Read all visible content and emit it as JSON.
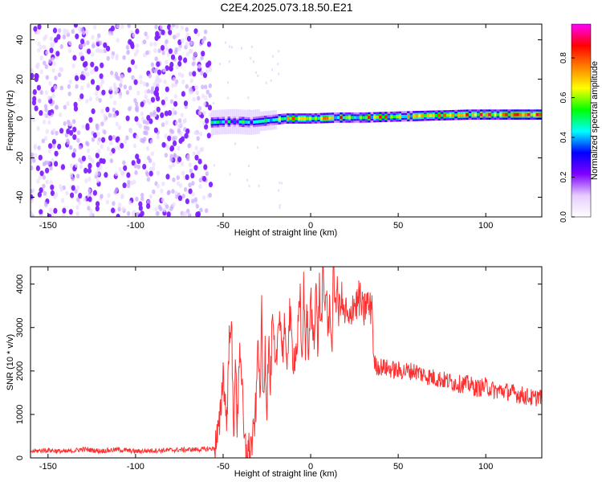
{
  "figure_title": "C2E4.2025.073.18.50.E21",
  "chart_data": [
    {
      "type": "heatmap",
      "xlabel": "Height of straight line (km)",
      "ylabel": "Frequency (Hz)",
      "xlim": [
        -160,
        132
      ],
      "ylim": [
        -50,
        48
      ],
      "xticks": [
        -150,
        -100,
        -50,
        0,
        50,
        100
      ],
      "yticks": [
        -40,
        -20,
        0,
        20,
        40
      ],
      "grid": false,
      "colorbar": {
        "label": "Normalized spectral amplitude",
        "range": [
          0.0,
          0.97
        ],
        "ticks": [
          0.0,
          0.2,
          0.4,
          0.6,
          0.8
        ],
        "colors": [
          "#ffffff",
          "#e6ccff",
          "#7f00ff",
          "#0000ff",
          "#00ffff",
          "#00ff00",
          "#ffff00",
          "#ff8000",
          "#ff0000",
          "#ff00ff"
        ]
      },
      "regions": [
        {
          "x": [
            -160,
            -57
          ],
          "freq": [
            -50,
            48
          ],
          "amplitude": [
            0.0,
            0.15
          ],
          "description": "broadband noise"
        },
        {
          "x": [
            -57,
            -20
          ],
          "freq": [
            -5,
            4
          ],
          "amplitude": [
            0.2,
            0.6
          ]
        },
        {
          "x": [
            -20,
            60
          ],
          "freq": [
            -2,
            3
          ],
          "amplitude": [
            0.4,
            0.9
          ]
        },
        {
          "x": [
            60,
            132
          ],
          "freq": [
            0,
            4
          ],
          "amplitude": [
            0.5,
            0.95
          ]
        }
      ],
      "ridge": {
        "x": [
          -57,
          -45,
          -35,
          -25,
          -15,
          0,
          15,
          30,
          50,
          70,
          90,
          110,
          132
        ],
        "freq": [
          -2,
          -1.5,
          -2,
          -1,
          0,
          0,
          0.5,
          0.5,
          1,
          1.5,
          2,
          2,
          2
        ]
      }
    },
    {
      "type": "line",
      "xlabel": "Height of straight line (km)",
      "ylabel": "SNR (10 * v/v)",
      "xlim": [
        -160,
        132
      ],
      "ylim": [
        0,
        4400
      ],
      "xticks": [
        -150,
        -100,
        -50,
        0,
        50,
        100
      ],
      "yticks": [
        0,
        1000,
        2000,
        3000,
        4000
      ],
      "grid": false,
      "series": [
        {
          "color": "#ff3030",
          "x": [
            -160,
            -150,
            -140,
            -130,
            -120,
            -110,
            -100,
            -90,
            -80,
            -70,
            -60,
            -55,
            -52,
            -50,
            -48,
            -46,
            -45,
            -44,
            -43,
            -42,
            -41,
            -40,
            -38,
            -36,
            -35,
            -33,
            -31,
            -30,
            -29,
            -28,
            -27,
            -26,
            -25,
            -24,
            -23,
            -22,
            -21,
            -20,
            -18,
            -16,
            -15,
            -14,
            -12,
            -10,
            -8,
            -6,
            -5,
            -4,
            -3,
            -2,
            -1,
            0,
            1,
            2,
            3,
            4,
            5,
            6,
            7,
            8,
            9,
            10,
            11,
            12,
            13,
            14,
            15,
            16,
            17,
            18,
            19,
            20,
            22,
            24,
            26,
            28,
            30,
            32,
            34,
            35,
            36,
            38,
            40,
            45,
            50,
            55,
            60,
            65,
            70,
            75,
            80,
            85,
            90,
            95,
            100,
            105,
            110,
            115,
            120,
            125,
            128,
            130,
            132
          ],
          "y": [
            150,
            180,
            140,
            200,
            160,
            190,
            150,
            170,
            180,
            190,
            200,
            220,
            700,
            2000,
            800,
            3300,
            2600,
            300,
            2600,
            400,
            2300,
            2500,
            300,
            150,
            200,
            400,
            1300,
            3100,
            1100,
            3300,
            1200,
            2600,
            1100,
            2800,
            1500,
            3100,
            2600,
            1800,
            3500,
            2400,
            3100,
            2000,
            3300,
            2300,
            2500,
            3600,
            2100,
            3900,
            2600,
            3300,
            2200,
            3800,
            2900,
            2900,
            4100,
            2500,
            3900,
            2900,
            4200,
            3400,
            4000,
            2700,
            3800,
            2300,
            4400,
            3600,
            3900,
            3300,
            3700,
            3600,
            3200,
            3400,
            3000,
            3600,
            3500,
            3700,
            3300,
            3600,
            3400,
            3700,
            2200,
            2100,
            2100,
            2050,
            2000,
            2000,
            2000,
            1900,
            1850,
            1800,
            1750,
            1700,
            1700,
            1600,
            1650,
            1550,
            1550,
            1500,
            1450,
            1400,
            1350,
            1450,
            1350
          ]
        }
      ]
    }
  ]
}
